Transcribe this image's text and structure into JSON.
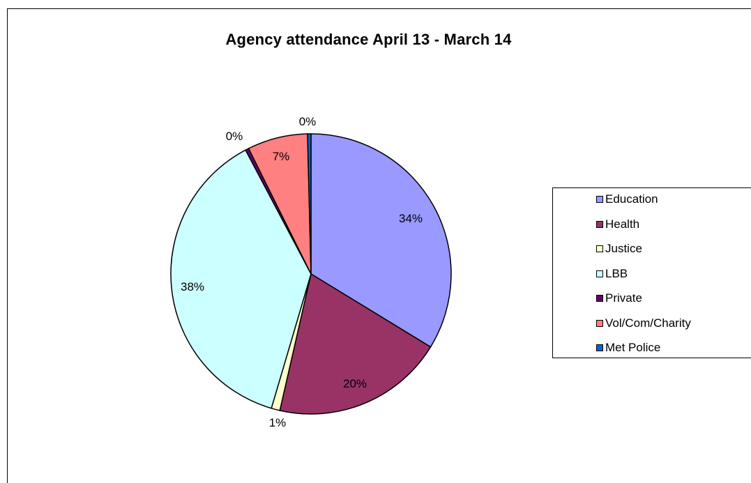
{
  "chart_data": {
    "type": "pie",
    "title": "Agency attendance April 13 - March 14",
    "categories": [
      "Education",
      "Health",
      "Justice",
      "LBB",
      "Private",
      "Vol/Com/Charity",
      "Met Police"
    ],
    "values": [
      34,
      20,
      1,
      38,
      0.4,
      7,
      0.4
    ],
    "data_labels": [
      "34%",
      "20%",
      "1%",
      "38%",
      "0%",
      "7%",
      "0%"
    ],
    "colors": [
      "#9999FF",
      "#993366",
      "#FFFFCC",
      "#CCFFFF",
      "#660066",
      "#FF8080",
      "#0066CC"
    ],
    "start_angle_deg": 0,
    "direction": "clockwise",
    "legend_position": "right",
    "grid": false
  }
}
